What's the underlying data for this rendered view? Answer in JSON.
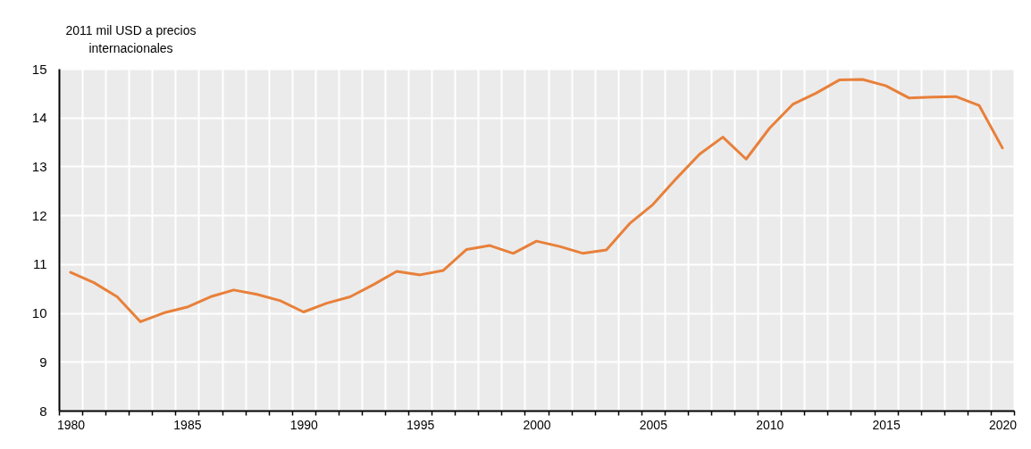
{
  "chart_data": {
    "type": "line",
    "ylabel": "2011 mil USD a precios\ninternacionales",
    "categories": [
      "1980",
      null,
      null,
      null,
      null,
      "1985",
      null,
      null,
      null,
      null,
      "1990",
      null,
      null,
      null,
      null,
      "1995",
      null,
      null,
      null,
      null,
      "2000",
      null,
      null,
      null,
      null,
      "2005",
      null,
      null,
      null,
      null,
      "2010",
      null,
      null,
      null,
      null,
      "2015",
      null,
      null,
      null,
      null,
      "2020"
    ],
    "series": [
      {
        "color": "#e8803a",
        "values": [
          10.83,
          10.62,
          10.33,
          9.82,
          10.0,
          10.12,
          10.33,
          10.47,
          10.38,
          10.25,
          10.02,
          10.2,
          10.33,
          10.58,
          10.85,
          10.78,
          10.87,
          11.3,
          11.38,
          11.22,
          11.47,
          11.36,
          11.22,
          11.29,
          11.83,
          12.22,
          12.75,
          13.25,
          13.6,
          13.15,
          13.78,
          14.27,
          14.5,
          14.77,
          14.78,
          14.65,
          14.4,
          14.42,
          14.43,
          14.25,
          13.38
        ]
      }
    ],
    "ylim": [
      8,
      15
    ],
    "yticks": [
      8,
      9,
      10,
      11,
      12,
      13,
      14,
      15
    ],
    "grid": true,
    "marker": "none",
    "line_style": "solid"
  }
}
